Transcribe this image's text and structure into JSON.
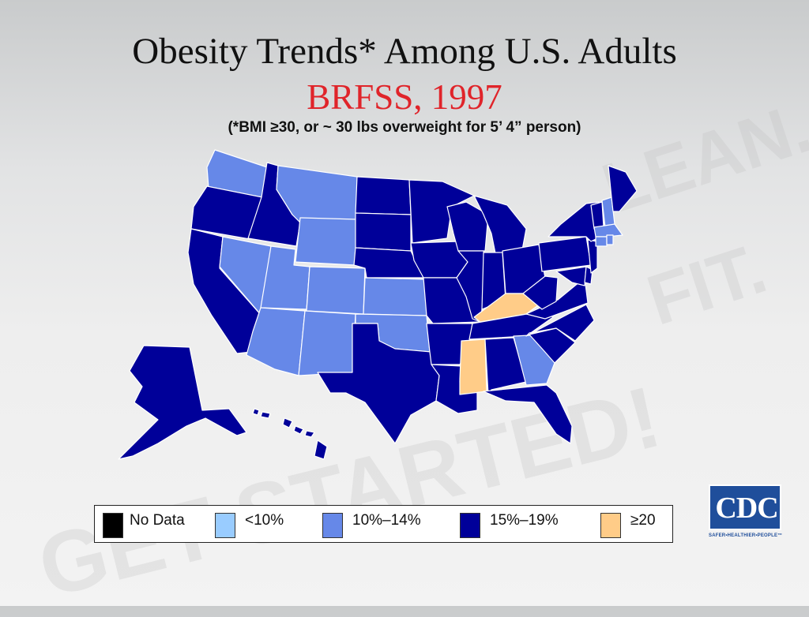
{
  "slide": {
    "title": "Obesity Trends* Among U.S. Adults",
    "subtitle": "BRFSS, 1997",
    "note": "(*BMI ≥30, or ~ 30 lbs overweight for 5’ 4” person)"
  },
  "watermark": [
    "LEAN.",
    "FIT.",
    "GET STARTED!"
  ],
  "legend": [
    {
      "label": "No Data",
      "color": "#000000"
    },
    {
      "label": "<10%",
      "color": "#99ccff"
    },
    {
      "label": "10%–14%",
      "color": "#6688e8"
    },
    {
      "label": "15%–19%",
      "color": "#000099"
    },
    {
      "label": "≥20",
      "color": "#ffcc88"
    }
  ],
  "map": {
    "states_by_category": {
      "10%–14%": [
        "WA",
        "MT",
        "WY",
        "NV",
        "UT",
        "CO",
        "AZ",
        "NM",
        "KS",
        "OK",
        "GA",
        "NH",
        "MA",
        "CT",
        "RI"
      ],
      "15%–19%": [
        "OR",
        "ID",
        "CA",
        "AK",
        "HI",
        "ND",
        "SD",
        "NE",
        "MN",
        "IA",
        "MO",
        "AR",
        "LA",
        "TX",
        "WI",
        "IL",
        "MI",
        "IN",
        "OH",
        "PA",
        "NY",
        "VT",
        "ME",
        "NJ",
        "DE",
        "MD",
        "VA",
        "WV",
        "NC",
        "SC",
        "TN",
        "AL",
        "FL"
      ],
      "≥20": [
        "KY",
        "MS"
      ]
    }
  },
  "logo": {
    "text": "CDC",
    "tagline": "SAFER•HEALTHIER•PEOPLE™"
  }
}
